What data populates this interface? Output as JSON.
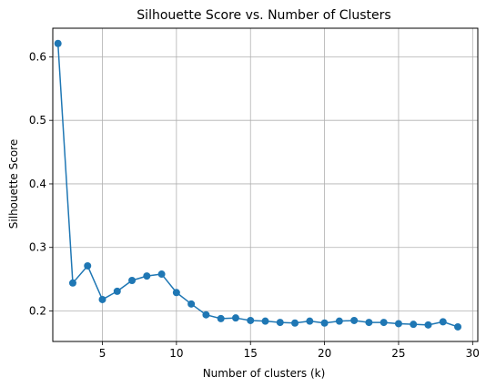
{
  "chart_data": {
    "type": "line",
    "title": "Silhouette Score vs. Number of Clusters",
    "xlabel": "Number of clusters (k)",
    "ylabel": "Silhouette Score",
    "xlim": [
      1.65,
      30.35
    ],
    "ylim": [
      0.152,
      0.645
    ],
    "xticks": [
      5,
      10,
      15,
      20,
      25,
      30
    ],
    "yticks": [
      0.2,
      0.3,
      0.4,
      0.5,
      0.6
    ],
    "xtick_labels": [
      "5",
      "10",
      "15",
      "20",
      "25",
      "30"
    ],
    "ytick_labels": [
      "0.2",
      "0.3",
      "0.4",
      "0.5",
      "0.6"
    ],
    "grid": true,
    "marker": "circle",
    "color": "#1f77b4",
    "series": [
      {
        "x": [
          2,
          3,
          4,
          5,
          6,
          7,
          8,
          9,
          10,
          11,
          12,
          13,
          14,
          15,
          16,
          17,
          18,
          19,
          20,
          21,
          22,
          23,
          24,
          25,
          26,
          27,
          28,
          29
        ],
        "values": [
          0.621,
          0.244,
          0.271,
          0.218,
          0.231,
          0.248,
          0.255,
          0.258,
          0.229,
          0.211,
          0.194,
          0.188,
          0.189,
          0.185,
          0.184,
          0.182,
          0.181,
          0.184,
          0.181,
          0.184,
          0.185,
          0.182,
          0.182,
          0.18,
          0.179,
          0.178,
          0.183,
          0.175
        ]
      }
    ]
  }
}
